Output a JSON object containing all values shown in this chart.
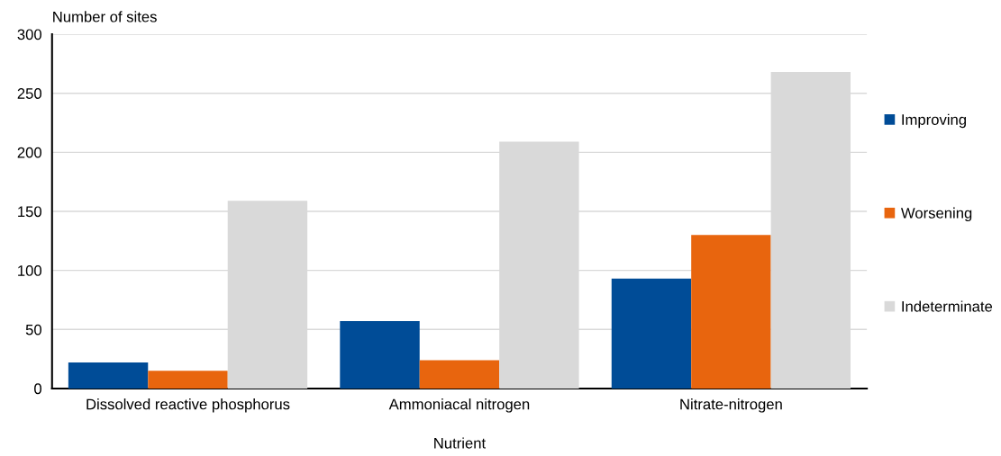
{
  "chart_data": {
    "type": "bar",
    "xlabel": "Nutrient",
    "ylabel": "Number of sites",
    "categories": [
      "Dissolved reactive phosphorus",
      "Ammoniacal nitrogen",
      "Nitrate-nitrogen"
    ],
    "series": [
      {
        "name": "Improving",
        "color": "#004c97",
        "values": [
          22,
          57,
          93
        ]
      },
      {
        "name": "Worsening",
        "color": "#e8650e",
        "values": [
          15,
          24,
          130
        ]
      },
      {
        "name": "Indeterminate",
        "color": "#d9d9d9",
        "values": [
          159,
          209,
          268
        ]
      }
    ],
    "ylim": [
      0,
      300
    ],
    "yticks": [
      0,
      50,
      100,
      150,
      200,
      250,
      300
    ],
    "grid": "y",
    "legend": "right"
  }
}
